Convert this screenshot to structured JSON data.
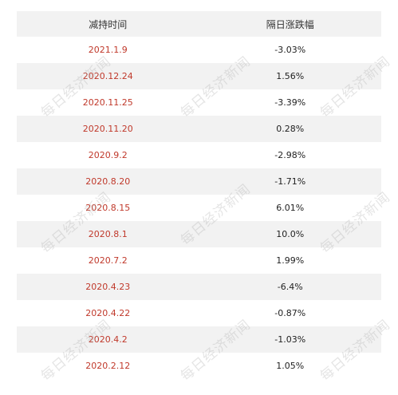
{
  "table": {
    "headers": [
      "减持时间",
      "隔日涨跌幅"
    ],
    "rows": [
      {
        "date": "2021.1.9",
        "change": "-3.03%"
      },
      {
        "date": "2020.12.24",
        "change": "1.56%"
      },
      {
        "date": "2020.11.25",
        "change": "-3.39%"
      },
      {
        "date": "2020.11.20",
        "change": "0.28%"
      },
      {
        "date": "2020.9.2",
        "change": "-2.98%"
      },
      {
        "date": "2020.8.20",
        "change": "-1.71%"
      },
      {
        "date": "2020.8.15",
        "change": "6.01%"
      },
      {
        "date": "2020.8.1",
        "change": "10.0%"
      },
      {
        "date": "2020.7.2",
        "change": "1.99%"
      },
      {
        "date": "2020.4.23",
        "change": "-6.4%"
      },
      {
        "date": "2020.4.22",
        "change": "-0.87%"
      },
      {
        "date": "2020.4.2",
        "change": "-1.03%"
      },
      {
        "date": "2020.2.12",
        "change": "1.05%"
      }
    ]
  },
  "watermark": "每日经济新闻",
  "colors": {
    "date_text": "#c0392b",
    "stripe": "#f2f2f2"
  }
}
